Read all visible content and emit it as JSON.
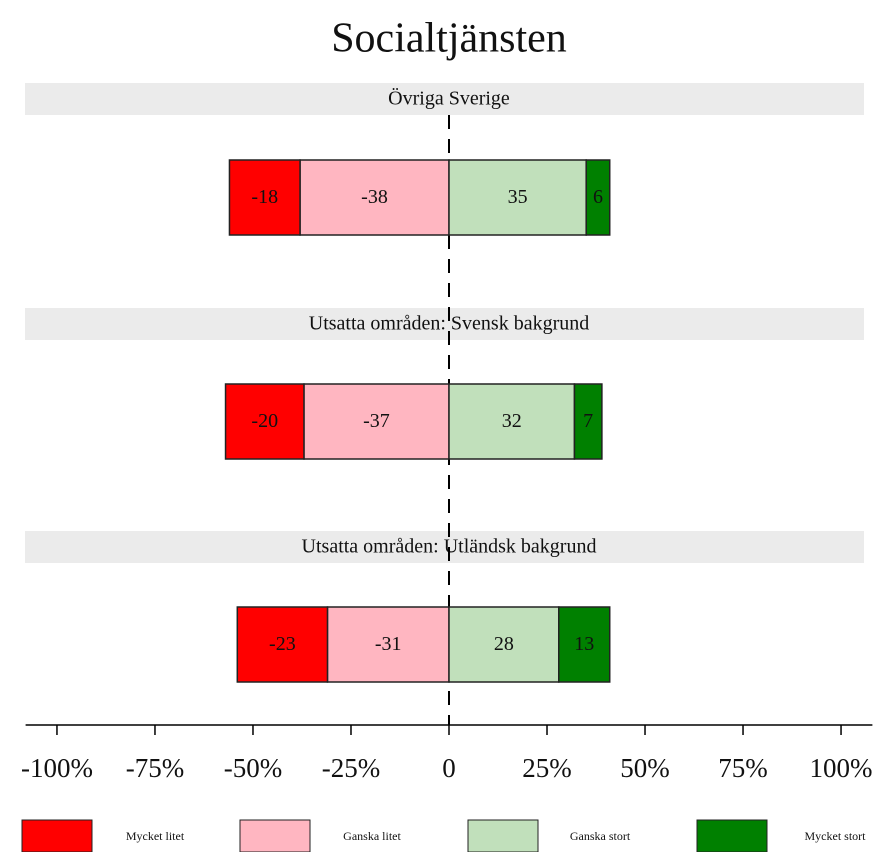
{
  "chart_data": {
    "type": "diverging_bar",
    "title": "Socialtjänsten",
    "categories": [
      "Övriga Sverige",
      "Utsatta områden: Svensk bakgrund",
      "Utsatta områden: Utländsk bakgrund"
    ],
    "series": [
      {
        "name": "Mycket litet",
        "color": "#ff0000",
        "values": [
          -18,
          -20,
          -23
        ]
      },
      {
        "name": "Ganska litet",
        "color": "#ffb6c1",
        "values": [
          -38,
          -37,
          -31
        ]
      },
      {
        "name": "Ganska stort",
        "color": "#c1e0bb",
        "values": [
          35,
          32,
          28
        ]
      },
      {
        "name": "Mycket stort",
        "color": "#008000",
        "values": [
          6,
          7,
          13
        ]
      }
    ],
    "xlim": [
      -108,
      108
    ],
    "xticks": [
      {
        "value": -100,
        "label": "-100%"
      },
      {
        "value": -75,
        "label": "-75%"
      },
      {
        "value": -50,
        "label": "-50%"
      },
      {
        "value": -25,
        "label": "-25%"
      },
      0,
      {
        "value": 25,
        "label": "25%"
      },
      {
        "value": 50,
        "label": "50%"
      },
      {
        "value": 75,
        "label": "75%"
      },
      {
        "value": 100,
        "label": "100%"
      }
    ],
    "legend": "bottom"
  }
}
